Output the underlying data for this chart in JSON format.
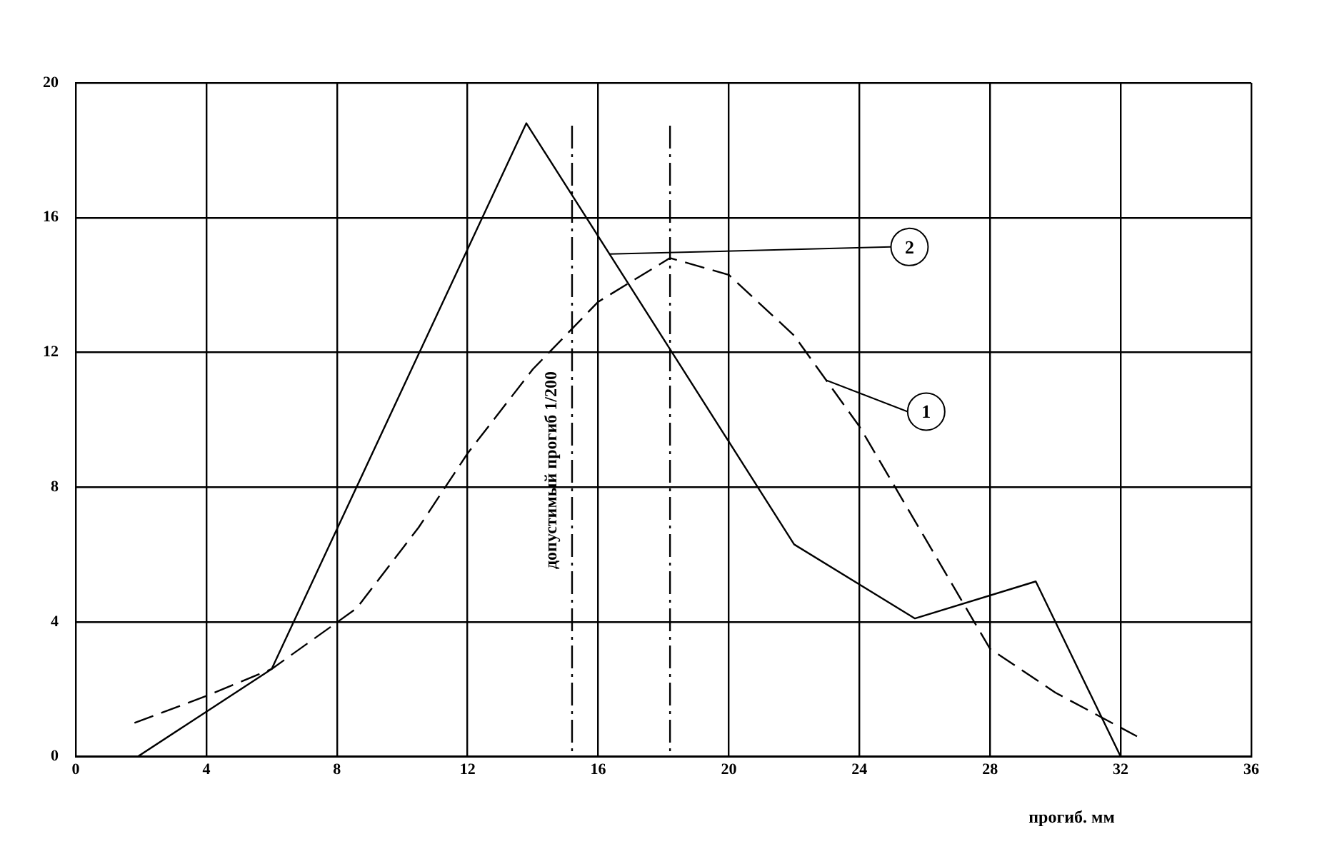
{
  "chart_data": {
    "type": "line",
    "xlabel": "прогиб. мм",
    "series": [
      {
        "name": "2",
        "color": "#000000",
        "line_style": "solid",
        "x": [
          1.9,
          6.0,
          13.8,
          22.0,
          25.7,
          29.4,
          32.0
        ],
        "values": [
          0,
          2.6,
          18.8,
          6.3,
          4.1,
          5.2,
          0
        ]
      },
      {
        "name": "1",
        "color": "#000000",
        "line_style": "dashed",
        "x": [
          1.8,
          4,
          6,
          8.6,
          10.5,
          12,
          14,
          16,
          18.2,
          20,
          22,
          24,
          26,
          28,
          30,
          32.5
        ],
        "values": [
          1,
          1.8,
          2.6,
          4.4,
          6.8,
          9.0,
          11.5,
          13.5,
          14.8,
          14.3,
          12.5,
          9.8,
          6.5,
          3.2,
          1.9,
          0.6
        ]
      }
    ],
    "xlim": [
      0,
      36
    ],
    "xticks": [
      0,
      4,
      8,
      12,
      16,
      20,
      24,
      28,
      32,
      36
    ],
    "ylim": [
      0,
      20
    ],
    "yticks": [
      0,
      4,
      8,
      12,
      16,
      20
    ],
    "ref_lines": [
      {
        "axis": "x",
        "value": 15.2,
        "label": "допустимый прогиб 1/200",
        "line_style": "dashed"
      },
      {
        "axis": "x",
        "value": 18.2,
        "line_style": "dashed"
      }
    ],
    "grid": true,
    "legend": false,
    "marker": "none"
  }
}
